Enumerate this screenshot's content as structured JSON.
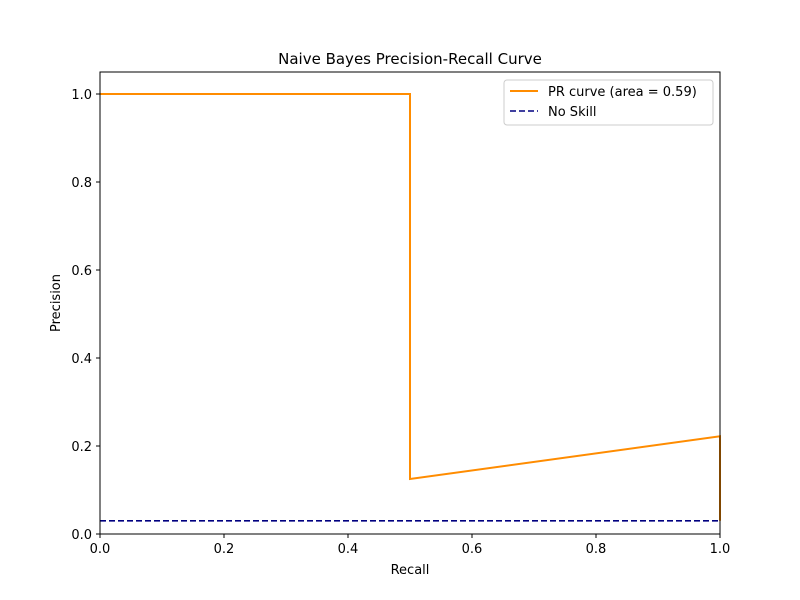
{
  "chart_data": {
    "type": "line",
    "title": "Naive Bayes Precision-Recall Curve",
    "xlabel": "Recall",
    "ylabel": "Precision",
    "xlim": [
      0.0,
      1.0
    ],
    "ylim": [
      0.0,
      1.05
    ],
    "xticks": [
      0.0,
      0.2,
      0.4,
      0.6,
      0.8,
      1.0
    ],
    "yticks": [
      0.0,
      0.2,
      0.4,
      0.6,
      0.8,
      1.0
    ],
    "xtick_labels": [
      "0.0",
      "0.2",
      "0.4",
      "0.6",
      "0.8",
      "1.0"
    ],
    "ytick_labels": [
      "0.0",
      "0.2",
      "0.4",
      "0.6",
      "0.8",
      "1.0"
    ],
    "legend_position": "top-right",
    "series": [
      {
        "name": "PR curve (area = 0.59)",
        "color": "#ff8c00",
        "style": "solid",
        "x": [
          0.0,
          0.5,
          0.5,
          1.0,
          1.0
        ],
        "y": [
          1.0,
          1.0,
          0.125,
          0.222,
          0.03
        ]
      },
      {
        "name": "No Skill",
        "color": "#000080",
        "style": "dashed",
        "x": [
          0.0,
          1.0
        ],
        "y": [
          0.03,
          0.03
        ]
      }
    ]
  }
}
